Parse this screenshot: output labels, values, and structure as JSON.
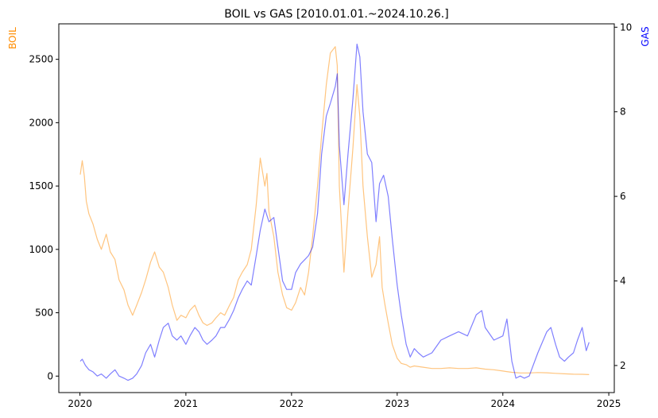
{
  "chart_data": {
    "type": "line",
    "title": "BOIL vs GAS [2010.01.01.~2024.10.26.]",
    "x_ticks": [
      "2020",
      "2021",
      "2022",
      "2023",
      "2024",
      "2025"
    ],
    "x_range": [
      "2019-10-20",
      "2025-01-20"
    ],
    "left_axis": {
      "label": "BOIL",
      "color": "#ff8c00",
      "ylim": [
        -130,
        2780
      ],
      "ticks": [
        0,
        500,
        1000,
        1500,
        2000,
        2500
      ]
    },
    "right_axis": {
      "label": "GAS",
      "color": "#0000ff",
      "ylim": [
        1.36,
        10.08
      ],
      "ticks": [
        2,
        4,
        6,
        8,
        10
      ]
    },
    "series": [
      {
        "name": "BOIL",
        "axis": "left",
        "color": "#ff8c00",
        "points": [
          [
            "2020-01-02",
            1590
          ],
          [
            "2020-01-09",
            1700
          ],
          [
            "2020-01-16",
            1580
          ],
          [
            "2020-01-23",
            1380
          ],
          [
            "2020-02-01",
            1280
          ],
          [
            "2020-02-15",
            1200
          ],
          [
            "2020-03-01",
            1080
          ],
          [
            "2020-03-15",
            1000
          ],
          [
            "2020-04-01",
            1120
          ],
          [
            "2020-04-15",
            980
          ],
          [
            "2020-05-01",
            920
          ],
          [
            "2020-05-15",
            760
          ],
          [
            "2020-06-01",
            680
          ],
          [
            "2020-06-15",
            560
          ],
          [
            "2020-07-01",
            480
          ],
          [
            "2020-07-15",
            560
          ],
          [
            "2020-08-01",
            660
          ],
          [
            "2020-08-15",
            760
          ],
          [
            "2020-09-01",
            900
          ],
          [
            "2020-09-15",
            980
          ],
          [
            "2020-10-01",
            860
          ],
          [
            "2020-10-15",
            820
          ],
          [
            "2020-11-01",
            700
          ],
          [
            "2020-11-15",
            560
          ],
          [
            "2020-12-01",
            440
          ],
          [
            "2020-12-15",
            480
          ],
          [
            "2021-01-01",
            460
          ],
          [
            "2021-01-15",
            520
          ],
          [
            "2021-02-01",
            560
          ],
          [
            "2021-02-15",
            480
          ],
          [
            "2021-03-01",
            420
          ],
          [
            "2021-03-15",
            400
          ],
          [
            "2021-04-01",
            420
          ],
          [
            "2021-04-15",
            460
          ],
          [
            "2021-05-01",
            500
          ],
          [
            "2021-05-15",
            480
          ],
          [
            "2021-06-01",
            560
          ],
          [
            "2021-06-15",
            620
          ],
          [
            "2021-07-01",
            760
          ],
          [
            "2021-07-15",
            820
          ],
          [
            "2021-08-01",
            880
          ],
          [
            "2021-08-15",
            1000
          ],
          [
            "2021-09-01",
            1350
          ],
          [
            "2021-09-15",
            1720
          ],
          [
            "2021-10-01",
            1500
          ],
          [
            "2021-10-08",
            1600
          ],
          [
            "2021-10-15",
            1300
          ],
          [
            "2021-11-01",
            1100
          ],
          [
            "2021-11-15",
            820
          ],
          [
            "2021-12-01",
            640
          ],
          [
            "2021-12-15",
            540
          ],
          [
            "2022-01-01",
            520
          ],
          [
            "2022-01-15",
            580
          ],
          [
            "2022-02-01",
            700
          ],
          [
            "2022-02-15",
            640
          ],
          [
            "2022-03-01",
            820
          ],
          [
            "2022-03-15",
            1100
          ],
          [
            "2022-04-01",
            1500
          ],
          [
            "2022-04-15",
            1900
          ],
          [
            "2022-05-01",
            2300
          ],
          [
            "2022-05-15",
            2550
          ],
          [
            "2022-06-01",
            2600
          ],
          [
            "2022-06-08",
            2450
          ],
          [
            "2022-06-15",
            1500
          ],
          [
            "2022-07-01",
            820
          ],
          [
            "2022-07-15",
            1300
          ],
          [
            "2022-08-01",
            1800
          ],
          [
            "2022-08-15",
            2300
          ],
          [
            "2022-08-25",
            2050
          ],
          [
            "2022-09-05",
            1500
          ],
          [
            "2022-09-20",
            1100
          ],
          [
            "2022-10-05",
            780
          ],
          [
            "2022-10-20",
            880
          ],
          [
            "2022-11-01",
            1100
          ],
          [
            "2022-11-10",
            700
          ],
          [
            "2022-11-20",
            560
          ],
          [
            "2022-12-01",
            420
          ],
          [
            "2022-12-15",
            250
          ],
          [
            "2023-01-01",
            140
          ],
          [
            "2023-01-15",
            100
          ],
          [
            "2023-02-01",
            90
          ],
          [
            "2023-02-15",
            70
          ],
          [
            "2023-03-01",
            80
          ],
          [
            "2023-04-01",
            70
          ],
          [
            "2023-05-01",
            60
          ],
          [
            "2023-06-01",
            60
          ],
          [
            "2023-07-01",
            65
          ],
          [
            "2023-08-01",
            60
          ],
          [
            "2023-09-01",
            60
          ],
          [
            "2023-10-01",
            65
          ],
          [
            "2023-11-01",
            55
          ],
          [
            "2023-12-01",
            50
          ],
          [
            "2024-01-01",
            40
          ],
          [
            "2024-02-01",
            30
          ],
          [
            "2024-03-01",
            25
          ],
          [
            "2024-04-01",
            25
          ],
          [
            "2024-05-01",
            28
          ],
          [
            "2024-06-01",
            26
          ],
          [
            "2024-07-01",
            22
          ],
          [
            "2024-08-01",
            18
          ],
          [
            "2024-09-01",
            15
          ],
          [
            "2024-10-01",
            14
          ],
          [
            "2024-10-25",
            12
          ]
        ]
      },
      {
        "name": "GAS",
        "axis": "right",
        "color": "#0000ff",
        "points": [
          [
            "2020-01-02",
            2.1
          ],
          [
            "2020-01-09",
            2.15
          ],
          [
            "2020-01-20",
            2.0
          ],
          [
            "2020-02-01",
            1.9
          ],
          [
            "2020-02-15",
            1.85
          ],
          [
            "2020-03-01",
            1.75
          ],
          [
            "2020-03-15",
            1.8
          ],
          [
            "2020-04-01",
            1.7
          ],
          [
            "2020-04-15",
            1.8
          ],
          [
            "2020-05-01",
            1.9
          ],
          [
            "2020-05-15",
            1.75
          ],
          [
            "2020-06-01",
            1.7
          ],
          [
            "2020-06-15",
            1.65
          ],
          [
            "2020-07-01",
            1.7
          ],
          [
            "2020-07-15",
            1.8
          ],
          [
            "2020-08-01",
            2.0
          ],
          [
            "2020-08-15",
            2.3
          ],
          [
            "2020-09-01",
            2.5
          ],
          [
            "2020-09-15",
            2.2
          ],
          [
            "2020-10-01",
            2.6
          ],
          [
            "2020-10-15",
            2.9
          ],
          [
            "2020-11-01",
            3.0
          ],
          [
            "2020-11-15",
            2.7
          ],
          [
            "2020-12-01",
            2.6
          ],
          [
            "2020-12-15",
            2.7
          ],
          [
            "2021-01-01",
            2.5
          ],
          [
            "2021-01-15",
            2.7
          ],
          [
            "2021-02-01",
            2.9
          ],
          [
            "2021-02-15",
            2.8
          ],
          [
            "2021-03-01",
            2.6
          ],
          [
            "2021-03-15",
            2.5
          ],
          [
            "2021-04-01",
            2.6
          ],
          [
            "2021-04-15",
            2.7
          ],
          [
            "2021-05-01",
            2.9
          ],
          [
            "2021-05-15",
            2.9
          ],
          [
            "2021-06-01",
            3.1
          ],
          [
            "2021-06-15",
            3.3
          ],
          [
            "2021-07-01",
            3.6
          ],
          [
            "2021-07-15",
            3.8
          ],
          [
            "2021-08-01",
            4.0
          ],
          [
            "2021-08-15",
            3.9
          ],
          [
            "2021-09-01",
            4.6
          ],
          [
            "2021-09-15",
            5.2
          ],
          [
            "2021-10-01",
            5.7
          ],
          [
            "2021-10-15",
            5.4
          ],
          [
            "2021-11-01",
            5.5
          ],
          [
            "2021-11-15",
            4.8
          ],
          [
            "2021-12-01",
            4.0
          ],
          [
            "2021-12-15",
            3.8
          ],
          [
            "2022-01-01",
            3.8
          ],
          [
            "2022-01-15",
            4.2
          ],
          [
            "2022-02-01",
            4.4
          ],
          [
            "2022-02-15",
            4.5
          ],
          [
            "2022-03-01",
            4.6
          ],
          [
            "2022-03-15",
            4.8
          ],
          [
            "2022-04-01",
            5.6
          ],
          [
            "2022-04-15",
            7.0
          ],
          [
            "2022-05-01",
            7.9
          ],
          [
            "2022-05-15",
            8.2
          ],
          [
            "2022-06-01",
            8.6
          ],
          [
            "2022-06-08",
            8.9
          ],
          [
            "2022-06-15",
            7.2
          ],
          [
            "2022-07-01",
            5.8
          ],
          [
            "2022-07-15",
            7.0
          ],
          [
            "2022-08-01",
            8.3
          ],
          [
            "2022-08-15",
            9.6
          ],
          [
            "2022-08-25",
            9.3
          ],
          [
            "2022-09-05",
            8.0
          ],
          [
            "2022-09-20",
            7.0
          ],
          [
            "2022-10-05",
            6.8
          ],
          [
            "2022-10-20",
            5.4
          ],
          [
            "2022-11-01",
            6.3
          ],
          [
            "2022-11-15",
            6.5
          ],
          [
            "2022-12-01",
            6.0
          ],
          [
            "2022-12-15",
            5.0
          ],
          [
            "2023-01-01",
            3.9
          ],
          [
            "2023-01-15",
            3.2
          ],
          [
            "2023-02-01",
            2.5
          ],
          [
            "2023-02-15",
            2.2
          ],
          [
            "2023-03-01",
            2.4
          ],
          [
            "2023-03-15",
            2.3
          ],
          [
            "2023-04-01",
            2.2
          ],
          [
            "2023-05-01",
            2.3
          ],
          [
            "2023-06-01",
            2.6
          ],
          [
            "2023-07-01",
            2.7
          ],
          [
            "2023-08-01",
            2.8
          ],
          [
            "2023-09-01",
            2.7
          ],
          [
            "2023-10-01",
            3.2
          ],
          [
            "2023-10-20",
            3.3
          ],
          [
            "2023-11-01",
            2.9
          ],
          [
            "2023-12-01",
            2.6
          ],
          [
            "2024-01-01",
            2.7
          ],
          [
            "2024-01-15",
            3.1
          ],
          [
            "2024-02-01",
            2.1
          ],
          [
            "2024-02-15",
            1.7
          ],
          [
            "2024-03-01",
            1.75
          ],
          [
            "2024-03-15",
            1.7
          ],
          [
            "2024-04-01",
            1.75
          ],
          [
            "2024-05-01",
            2.3
          ],
          [
            "2024-06-01",
            2.8
          ],
          [
            "2024-06-15",
            2.9
          ],
          [
            "2024-07-01",
            2.5
          ],
          [
            "2024-07-15",
            2.2
          ],
          [
            "2024-08-01",
            2.1
          ],
          [
            "2024-08-15",
            2.2
          ],
          [
            "2024-09-01",
            2.3
          ],
          [
            "2024-09-15",
            2.6
          ],
          [
            "2024-10-01",
            2.9
          ],
          [
            "2024-10-15",
            2.35
          ],
          [
            "2024-10-25",
            2.55
          ]
        ]
      }
    ]
  }
}
